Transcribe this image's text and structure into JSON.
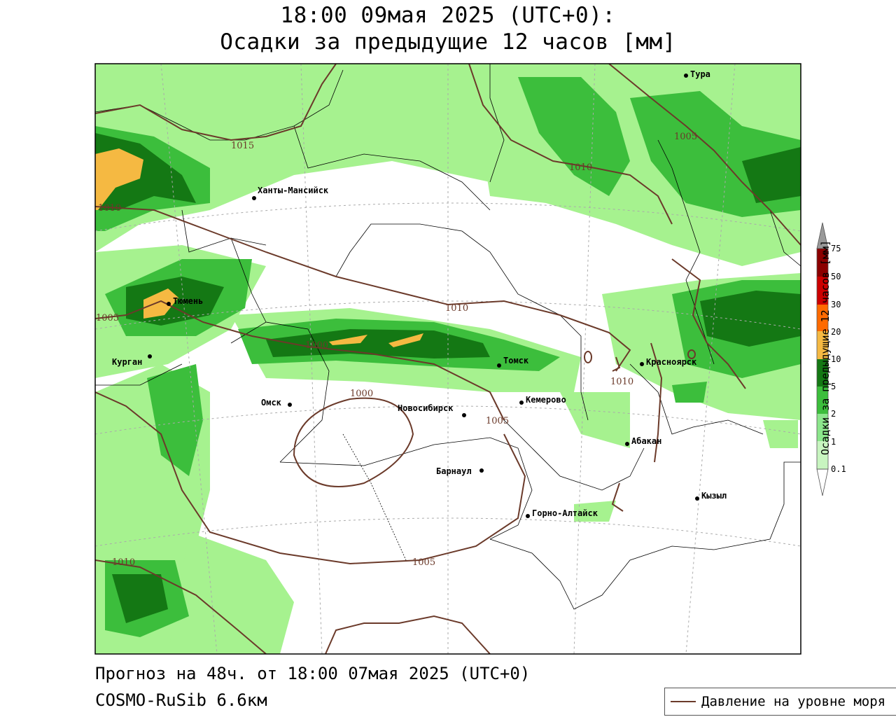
{
  "header": {
    "title_line1": "18:00 09мая 2025 (UTC+0):",
    "title_line2": "Осадки за предыдущие 12 часов [мм]"
  },
  "map": {
    "cities": [
      {
        "name": "Тура"
      },
      {
        "name": "Ханты-Мансийск"
      },
      {
        "name": "Тюмень"
      },
      {
        "name": "Курган"
      },
      {
        "name": "Омск"
      },
      {
        "name": "Новосибирск"
      },
      {
        "name": "Томск"
      },
      {
        "name": "Кемерово"
      },
      {
        "name": "Красноярск"
      },
      {
        "name": "Абакан"
      },
      {
        "name": "Барнаул"
      },
      {
        "name": "Горно-Алтайск"
      },
      {
        "name": "Кызыл"
      }
    ],
    "isobar_labels": [
      "1015",
      "1010",
      "1005",
      "1010",
      "1010",
      "1005",
      "1000",
      "1005",
      "1010",
      "1010",
      "1005",
      "1000"
    ],
    "colors": {
      "precip_light": "#a6f28f",
      "precip_mid": "#3cbe3c",
      "precip_dark": "#147814",
      "precip_orange": "#f5b942",
      "isobar": "#6b3a2a"
    }
  },
  "scale": {
    "title": "Осадки за предыдущие 12 часов [мм]",
    "levels": [
      "75",
      "50",
      "30",
      "20",
      "10",
      "5",
      "2",
      "1",
      "0.1"
    ],
    "colors": [
      "#8b0000",
      "#cc0000",
      "#ff6a00",
      "#f5b942",
      "#147814",
      "#3cbe3c",
      "#8ce68c",
      "#c8f5c0"
    ]
  },
  "footer": {
    "forecast": "Прогноз на 48ч. от 18:00 07мая 2025 (UTC+0)",
    "model": "COSMO-RuSib 6.6км"
  },
  "legend": {
    "pressure_label": "Давление на уровне моря"
  }
}
